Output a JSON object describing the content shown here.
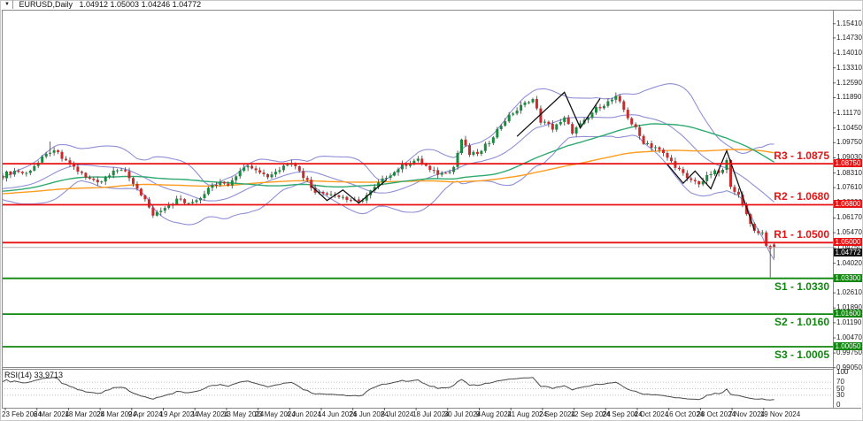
{
  "header": {
    "symbol_timeframe": "EURUSD,Daily",
    "ohlc_line": "1.04912 1.05003 1.04246 1.04772",
    "marker_icon": "▼"
  },
  "levels": [
    {
      "label": "R3 - 1.0875",
      "name": "R3",
      "price": 1.0875,
      "axis_label": "1.08750",
      "kind": "resistance"
    },
    {
      "label": "R2 - 1.0680",
      "name": "R2",
      "price": 1.068,
      "axis_label": "1.06800",
      "kind": "resistance"
    },
    {
      "label": "R1 - 1.0500",
      "name": "R1",
      "price": 1.05,
      "axis_label": "1.05000",
      "kind": "resistance"
    },
    {
      "label": "S1 - 1.0330",
      "name": "S1",
      "price": 1.033,
      "axis_label": "1.03300",
      "kind": "support"
    },
    {
      "label": "S2 - 1.0160",
      "name": "S2",
      "price": 1.016,
      "axis_label": "1.01600",
      "kind": "support"
    },
    {
      "label": "S3 - 1.0005",
      "name": "S3",
      "price": 1.0005,
      "axis_label": "1.00050",
      "kind": "support"
    }
  ],
  "current_price": {
    "value": 1.04772,
    "axis_label": "1.04772"
  },
  "price_axis": {
    "side": "right",
    "ticks": [
      "1.16130",
      "1.15410",
      "1.14730",
      "1.14010",
      "1.13310",
      "1.12590",
      "1.11890",
      "1.11170",
      "1.10450",
      "1.09750",
      "1.09030",
      "1.08310",
      "1.07610",
      "1.06890",
      "1.06170",
      "1.05470",
      "1.04750",
      "1.04020",
      "1.03310",
      "1.02610",
      "1.01890",
      "1.01190",
      "1.00470",
      "0.99750",
      "0.99050"
    ]
  },
  "date_axis": {
    "labels": [
      "23 Feb 2024",
      "6 Mar 2024",
      "18 Mar 2024",
      "28 Mar 2024",
      "9 Apr 2024",
      "19 Apr 2024",
      "1 May 2024",
      "13 May 2024",
      "23 May 2024",
      "4 Jun 2024",
      "14 Jun 2024",
      "26 Jun 2024",
      "8 Jul 2024",
      "18 Jul 2024",
      "30 Jul 2024",
      "9 Aug 2024",
      "21 Aug 2024",
      "2 Sep 2024",
      "12 Sep 2024",
      "24 Sep 2024",
      "4 Oct 2024",
      "16 Oct 2024",
      "28 Oct 2024",
      "7 Nov 2024",
      "19 Nov 2024"
    ]
  },
  "rsi": {
    "label": "RSI(14) 33.9713",
    "period": 14,
    "value": 33.9713,
    "guide_levels": [
      70,
      50,
      30
    ],
    "scale_labels": [
      "100",
      "70",
      "50",
      "30",
      "0"
    ]
  },
  "colors": {
    "resistance": "#e81212",
    "support": "#0f870f",
    "bull": "#1a8a3e",
    "bear": "#cc2a2a",
    "wick": "#3a3a3a",
    "bollinger": "#8f8fd8",
    "sma_fast": "#2faa6e",
    "sma_slow": "#ff9c1e",
    "current_price_line": "#b4b4b4",
    "current_price_badge_bg": "#111111",
    "trendline": "#111111",
    "rsi_line": "#4a4a4a",
    "frame": "#8a8a8a"
  },
  "chart_data": {
    "type": "candlestick",
    "title": "EURUSD,Daily",
    "symbol": "EURUSD",
    "timeframe": "Daily",
    "bars_total": 196,
    "y_range": [
      0.9908,
      1.162
    ],
    "last_bar": {
      "open": 1.04912,
      "high": 1.05003,
      "low": 1.04246,
      "close": 1.04772
    },
    "close_anchors": [
      [
        0,
        1.0818
      ],
      [
        3,
        1.084
      ],
      [
        6,
        1.083
      ],
      [
        9,
        1.088
      ],
      [
        12,
        1.0935
      ],
      [
        14,
        1.092
      ],
      [
        17,
        1.087
      ],
      [
        21,
        1.0806
      ],
      [
        25,
        1.0792
      ],
      [
        28,
        1.0846
      ],
      [
        31,
        1.0832
      ],
      [
        34,
        1.0758
      ],
      [
        38,
        1.0625
      ],
      [
        41,
        1.0658
      ],
      [
        44,
        1.0705
      ],
      [
        47,
        1.069
      ],
      [
        50,
        1.0716
      ],
      [
        53,
        1.0775
      ],
      [
        57,
        1.078
      ],
      [
        61,
        1.0866
      ],
      [
        64,
        1.0856
      ],
      [
        67,
        1.0812
      ],
      [
        70,
        1.0848
      ],
      [
        73,
        1.089
      ],
      [
        76,
        1.0815
      ],
      [
        79,
        1.0742
      ],
      [
        83,
        1.0738
      ],
      [
        87,
        1.0704
      ],
      [
        90,
        1.0692
      ],
      [
        93,
        1.0746
      ],
      [
        97,
        1.0812
      ],
      [
        101,
        1.0864
      ],
      [
        105,
        1.0896
      ],
      [
        108,
        1.0842
      ],
      [
        111,
        1.0826
      ],
      [
        114,
        1.0858
      ],
      [
        116,
        1.0988
      ],
      [
        118,
        1.0918
      ],
      [
        121,
        1.0932
      ],
      [
        124,
        1.1012
      ],
      [
        127,
        1.1078
      ],
      [
        131,
        1.1152
      ],
      [
        134,
        1.1186
      ],
      [
        136,
        1.1076
      ],
      [
        139,
        1.1046
      ],
      [
        142,
        1.1086
      ],
      [
        144,
        1.1022
      ],
      [
        147,
        1.1076
      ],
      [
        150,
        1.1136
      ],
      [
        153,
        1.1166
      ],
      [
        155,
        1.1192
      ],
      [
        157,
        1.1132
      ],
      [
        160,
        1.1036
      ],
      [
        162,
        1.0976
      ],
      [
        166,
        1.0942
      ],
      [
        170,
        1.0862
      ],
      [
        173,
        1.08
      ],
      [
        176,
        1.0782
      ],
      [
        179,
        1.0826
      ],
      [
        182,
        1.0842
      ],
      [
        183,
        1.0882
      ],
      [
        184,
        1.0772
      ],
      [
        186,
        1.0722
      ],
      [
        188,
        1.0632
      ],
      [
        190,
        1.0556
      ],
      [
        192,
        1.0546
      ],
      [
        193,
        1.0488
      ],
      [
        194,
        1.0462
      ],
      [
        195,
        1.04772
      ]
    ],
    "wick_overrides": [
      [
        12,
        "high",
        1.0981
      ],
      [
        155,
        "high",
        1.1214
      ],
      [
        194,
        "low",
        1.0335
      ]
    ],
    "support_resistance": [
      {
        "name": "R3",
        "price": 1.0875
      },
      {
        "name": "R2",
        "price": 1.068
      },
      {
        "name": "R1",
        "price": 1.05
      },
      {
        "name": "S1",
        "price": 1.033
      },
      {
        "name": "S2",
        "price": 1.016
      },
      {
        "name": "S3",
        "price": 1.0005
      }
    ],
    "indicators": {
      "bollinger_bands": {
        "period": 20,
        "deviation": 2
      },
      "sma_fast": {
        "period": 50
      },
      "sma_slow": {
        "period": 100
      },
      "rsi": {
        "period": 14,
        "last_value": 33.9713
      }
    },
    "trendlines": [
      {
        "points": [
          [
            78,
            1.077
          ],
          [
            82,
            1.07
          ],
          [
            86,
            1.075
          ],
          [
            90,
            1.0688
          ],
          [
            97,
            1.0798
          ]
        ]
      },
      {
        "points": [
          [
            130,
            1.1005
          ],
          [
            142,
            1.1215
          ],
          [
            146,
            1.1045
          ],
          [
            151,
            1.1185
          ]
        ]
      },
      {
        "points": [
          [
            168,
            1.0872
          ],
          [
            172,
            1.0782
          ],
          [
            175,
            1.084
          ],
          [
            179,
            1.0756
          ],
          [
            183,
            1.0937
          ],
          [
            190,
            1.056
          ]
        ]
      }
    ]
  }
}
